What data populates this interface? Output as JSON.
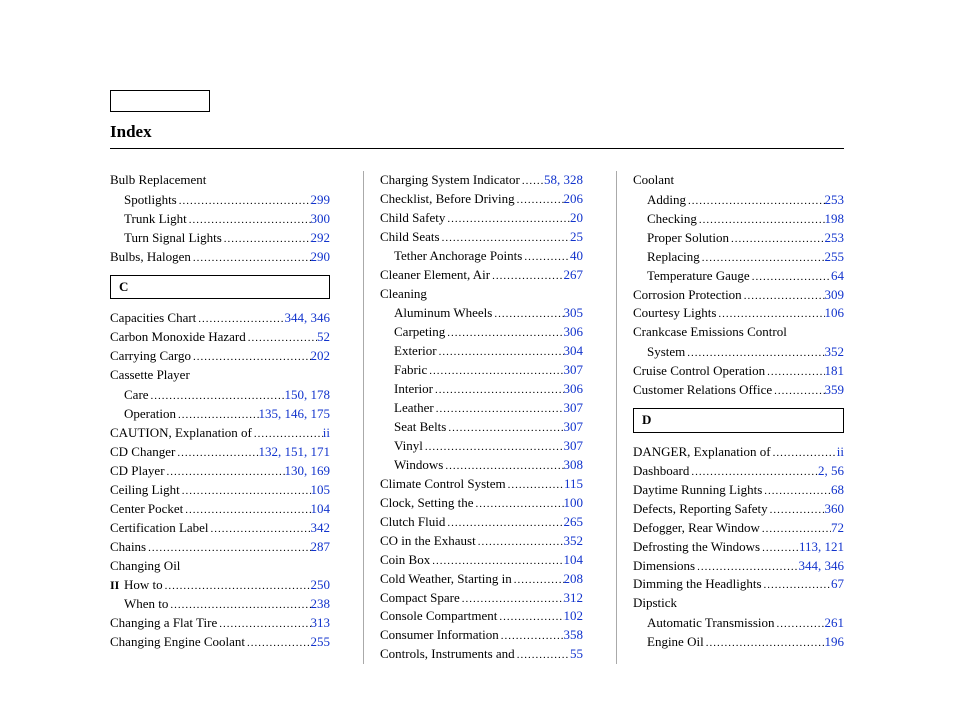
{
  "title": "Index",
  "page_number": "II",
  "letters": {
    "C": "C",
    "D": "D"
  },
  "col1": {
    "h1": "Bulb Replacement",
    "e1": {
      "label": "Spotlights",
      "pages": [
        299
      ]
    },
    "e2": {
      "label": "Trunk Light",
      "pages": [
        300
      ]
    },
    "e3": {
      "label": "Turn Signal Lights",
      "pages": [
        292
      ]
    },
    "e4": {
      "label": "Bulbs, Halogen",
      "pages": [
        290
      ]
    },
    "e5": {
      "label": "Capacities Chart",
      "pages": "344, 346"
    },
    "e6": {
      "label": "Carbon Monoxide Hazard",
      "pages": [
        52
      ]
    },
    "e7": {
      "label": "Carrying Cargo",
      "pages": [
        202
      ]
    },
    "h2": "Cassette Player",
    "e8": {
      "label": "Care",
      "pages": "150, 178"
    },
    "e9": {
      "label": "Operation",
      "pages": "135, 146, 175"
    },
    "e10": {
      "label": "CAUTION, Explanation of",
      "pages": "ii"
    },
    "e11": {
      "label": "CD Changer",
      "pages": "132, 151, 171"
    },
    "e12": {
      "label": "CD Player",
      "pages": "130, 169"
    },
    "e13": {
      "label": "Ceiling Light",
      "pages": [
        105
      ]
    },
    "e14": {
      "label": "Center Pocket",
      "pages": [
        104
      ]
    },
    "e15": {
      "label": "Certification Label",
      "pages": [
        342
      ]
    },
    "e16": {
      "label": "Chains",
      "pages": [
        287
      ]
    },
    "h3": "Changing Oil",
    "e17": {
      "label": "How to",
      "pages": [
        250
      ]
    },
    "e18": {
      "label": "When to",
      "pages": [
        238
      ]
    },
    "e19": {
      "label": "Changing a Flat Tire",
      "pages": [
        313
      ]
    },
    "e20": {
      "label": "Changing Engine Coolant",
      "pages": [
        255
      ]
    }
  },
  "col2": {
    "e1": {
      "label": "Charging System Indicator",
      "pages": "58, 328"
    },
    "e2": {
      "label": "Checklist, Before Driving",
      "pages": [
        206
      ]
    },
    "e3": {
      "label": "Child Safety",
      "pages": [
        20
      ]
    },
    "e4": {
      "label": "Child Seats",
      "pages": [
        25
      ]
    },
    "e5": {
      "label": "Tether Anchorage Points",
      "pages": [
        40
      ]
    },
    "e6": {
      "label": "Cleaner Element, Air",
      "pages": [
        267
      ]
    },
    "h1": "Cleaning",
    "e7": {
      "label": "Aluminum Wheels",
      "pages": [
        305
      ]
    },
    "e8": {
      "label": "Carpeting",
      "pages": [
        306
      ]
    },
    "e9": {
      "label": "Exterior",
      "pages": [
        304
      ]
    },
    "e10": {
      "label": "Fabric",
      "pages": [
        307
      ]
    },
    "e11": {
      "label": "Interior",
      "pages": [
        306
      ]
    },
    "e12": {
      "label": "Leather",
      "pages": [
        307
      ]
    },
    "e13": {
      "label": "Seat Belts",
      "pages": [
        307
      ]
    },
    "e14": {
      "label": "Vinyl",
      "pages": [
        307
      ]
    },
    "e15": {
      "label": "Windows",
      "pages": [
        308
      ]
    },
    "e16": {
      "label": "Climate Control System",
      "pages": [
        115
      ]
    },
    "e17": {
      "label": "Clock, Setting the",
      "pages": [
        100
      ]
    },
    "e18": {
      "label": "Clutch Fluid",
      "pages": [
        265
      ]
    },
    "e19": {
      "label": "CO in the Exhaust",
      "pages": [
        352
      ]
    },
    "e20": {
      "label": "Coin Box",
      "pages": [
        104
      ]
    },
    "e21": {
      "label": "Cold Weather, Starting in",
      "pages": [
        208
      ]
    },
    "e22": {
      "label": "Compact Spare",
      "pages": [
        312
      ]
    },
    "e23": {
      "label": "Console Compartment",
      "pages": [
        102
      ]
    },
    "e24": {
      "label": "Consumer Information",
      "pages": [
        358
      ]
    },
    "e25": {
      "label": "Controls, Instruments and",
      "pages": [
        55
      ]
    }
  },
  "col3": {
    "h1": "Coolant",
    "e1": {
      "label": "Adding",
      "pages": [
        253
      ]
    },
    "e2": {
      "label": "Checking",
      "pages": [
        198
      ]
    },
    "e3": {
      "label": "Proper Solution",
      "pages": [
        253
      ]
    },
    "e4": {
      "label": "Replacing",
      "pages": [
        255
      ]
    },
    "e5": {
      "label": "Temperature Gauge",
      "pages": [
        64
      ]
    },
    "e6": {
      "label": "Corrosion Protection",
      "pages": [
        309
      ]
    },
    "e7": {
      "label": "Courtesy Lights",
      "pages": [
        106
      ]
    },
    "h2a": "Crankcase Emissions Control",
    "e8": {
      "label": "System",
      "pages": [
        352
      ]
    },
    "e9": {
      "label": "Cruise Control Operation",
      "pages": [
        181
      ]
    },
    "e10": {
      "label": "Customer Relations Office",
      "pages": [
        359
      ]
    },
    "e11": {
      "label": "DANGER, Explanation of",
      "pages": "ii"
    },
    "e12": {
      "label": "Dashboard",
      "pages": "2, 56"
    },
    "e13": {
      "label": "Daytime Running Lights",
      "pages": [
        68
      ]
    },
    "e14": {
      "label": "Defects, Reporting Safety",
      "pages": [
        360
      ]
    },
    "e15": {
      "label": "Defogger, Rear Window",
      "pages": [
        72
      ]
    },
    "e16": {
      "label": "Defrosting the Windows",
      "pages": "113, 121"
    },
    "e17": {
      "label": "Dimensions",
      "pages": "344, 346"
    },
    "e18": {
      "label": "Dimming the Headlights",
      "pages": [
        67
      ]
    },
    "h3": "Dipstick",
    "e19": {
      "label": "Automatic Transmission",
      "pages": [
        261
      ]
    },
    "e20": {
      "label": "Engine Oil",
      "pages": [
        196
      ]
    }
  },
  "colors": {
    "link": "#1133cc",
    "text": "#000000",
    "rule": "#aaaaaa",
    "bg": "#ffffff"
  }
}
